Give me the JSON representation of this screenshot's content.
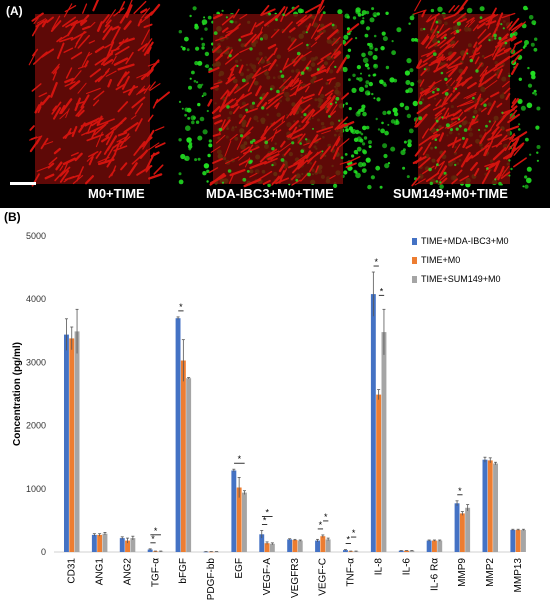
{
  "panel_a": {
    "label": "(A)",
    "wells": [
      {
        "caption": "M0+TIME",
        "has_tumor": false
      },
      {
        "caption": "MDA-IBC3+M0+TIME",
        "has_tumor": true
      },
      {
        "caption": "SUM149+M0+TIME",
        "has_tumor": true
      }
    ],
    "vessel_color": "#d2140f",
    "tumor_color": "#22e022"
  },
  "panel_b": {
    "label": "(B)"
  },
  "chart_data": {
    "type": "bar",
    "title": "",
    "xlabel": "",
    "ylabel": "Concentration (pg/ml)",
    "ylim": [
      0,
      5000
    ],
    "yticks": [
      0,
      1000,
      2000,
      3000,
      4000,
      5000
    ],
    "grid": false,
    "legend_position": "top-right",
    "categories": [
      "CD31",
      "ANG1",
      "ANG2",
      "TGF-α",
      "bFGF",
      "PDGF-bb",
      "EGF",
      "VEGF-A",
      "VEGFR3",
      "VEGF-C",
      "TNF-α",
      "IL-8",
      "IL-6",
      "IL-6 Rα",
      "MMP9",
      "MMP2",
      "MMP13"
    ],
    "series": [
      {
        "name": "TIME+MDA-IBC3+M0",
        "color": "#4472c4",
        "values": [
          3440,
          270,
          220,
          40,
          3700,
          5,
          1290,
          280,
          200,
          180,
          30,
          4080,
          20,
          180,
          770,
          1460,
          350
        ],
        "errors": [
          250,
          20,
          20,
          10,
          20,
          2,
          20,
          60,
          10,
          20,
          8,
          350,
          3,
          10,
          40,
          40,
          10
        ]
      },
      {
        "name": "TIME+M0",
        "color": "#ed7d31",
        "values": [
          3380,
          270,
          180,
          10,
          3030,
          5,
          1020,
          140,
          190,
          250,
          10,
          2490,
          20,
          180,
          610,
          1450,
          350
        ],
        "errors": [
          180,
          20,
          40,
          5,
          330,
          2,
          160,
          20,
          10,
          20,
          5,
          80,
          3,
          10,
          30,
          40,
          10
        ]
      },
      {
        "name": "TIME+SUM149+M0",
        "color": "#a5a5a5",
        "values": [
          3490,
          290,
          220,
          10,
          2750,
          5,
          940,
          130,
          180,
          200,
          10,
          3480,
          20,
          180,
          700,
          1400,
          350
        ],
        "errors": [
          350,
          20,
          30,
          5,
          10,
          2,
          30,
          15,
          10,
          20,
          5,
          360,
          3,
          10,
          50,
          20,
          10
        ]
      }
    ],
    "annotations": [
      "*",
      "*",
      "*",
      "*",
      "*",
      "*",
      "*",
      "*",
      "*",
      "*",
      "*",
      "*",
      "*"
    ]
  }
}
